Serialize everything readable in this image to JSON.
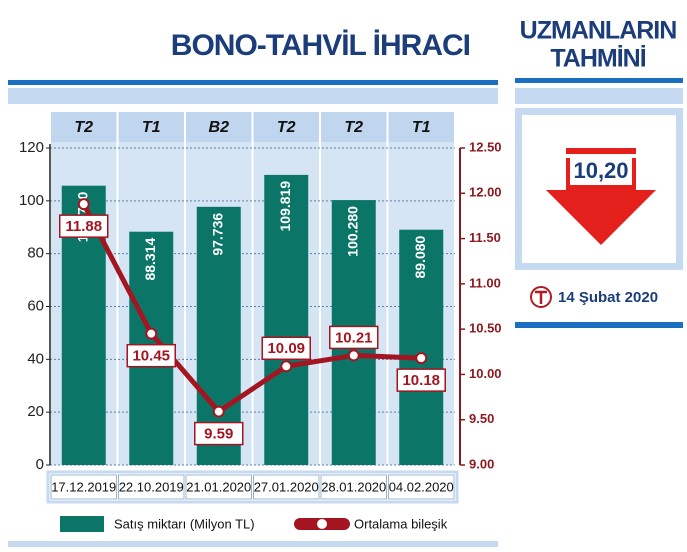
{
  "title": "BONO-TAHVİL İHRACI",
  "chart_data": {
    "type": "bar-line",
    "categories": [
      "17.12.2019",
      "22.10.2019",
      "21.01.2020",
      "27.01.2020",
      "28.01.2020",
      "04.02.2020"
    ],
    "top_labels": [
      "T2",
      "T1",
      "B2",
      "T2",
      "T2",
      "T1"
    ],
    "series": [
      {
        "name": "Satış miktarı (Milyon TL)",
        "color": "#0b7668",
        "type": "bar",
        "values": [
          105.73,
          88.314,
          97.736,
          109.819,
          100.28,
          89.08
        ],
        "value_labels": [
          "105.730",
          "88.314",
          "97.736",
          "109.819",
          "100.280",
          "89.080"
        ]
      },
      {
        "name": "Ortalama bileşik",
        "color": "#a31621",
        "type": "line",
        "axis": "y2",
        "values": [
          11.88,
          10.45,
          9.59,
          10.09,
          10.21,
          10.18
        ]
      }
    ],
    "ylim": [
      0,
      120
    ],
    "yticks": [
      0,
      20,
      40,
      60,
      80,
      100,
      120
    ],
    "y2lim": [
      9,
      12.5
    ],
    "y2ticks": [
      {
        "value": 9,
        "label": "9.00"
      },
      {
        "value": 9.5,
        "label": "9.50"
      },
      {
        "value": 10,
        "label": "10.00"
      },
      {
        "value": 10.5,
        "label": "10.50"
      },
      {
        "value": 11,
        "label": "11.00"
      },
      {
        "value": 11.5,
        "label": "11.50"
      },
      {
        "value": 12,
        "label": "12.00"
      },
      {
        "value": 12.5,
        "label": "12.50"
      }
    ],
    "grid": true
  },
  "side_panel": {
    "title_lines": [
      "UZMANLARIN",
      "TAHMİNİ"
    ],
    "forecast": "10,20",
    "date": "14 Şubat 2020"
  }
}
